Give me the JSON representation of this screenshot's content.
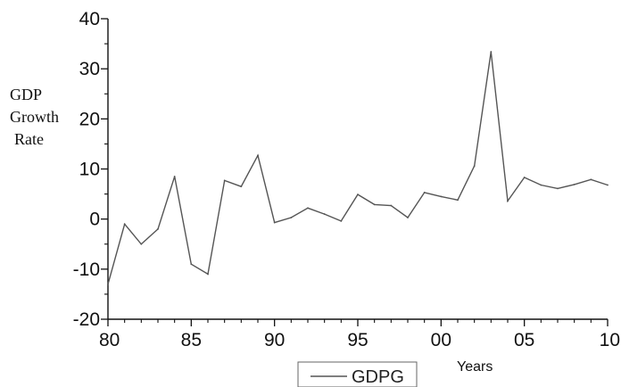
{
  "chart_data": {
    "type": "line",
    "title": "",
    "ylabel": [
      "GDP",
      "Growth",
      "Rate"
    ],
    "xlabel": "Years",
    "x_ticks": [
      "80",
      "85",
      "90",
      "95",
      "00",
      "05",
      "10"
    ],
    "y_ticks": [
      "40",
      "30",
      "20",
      "10",
      "0",
      "-10",
      "-20"
    ],
    "xlim": [
      1980,
      2010
    ],
    "ylim": [
      -20,
      40
    ],
    "grid": false,
    "legend_position": "bottom-center",
    "series": [
      {
        "name": "GDPG",
        "color": "#555555",
        "x": [
          1980,
          1981,
          1982,
          1983,
          1984,
          1985,
          1986,
          1987,
          1988,
          1989,
          1990,
          1991,
          1992,
          1993,
          1994,
          1995,
          1996,
          1997,
          1998,
          1999,
          2000,
          2001,
          2002,
          2003,
          2004,
          2005,
          2006,
          2007,
          2008,
          2009,
          2010
        ],
        "y": [
          -13,
          -1,
          -5,
          -2,
          8.5,
          -9,
          -11,
          7.7,
          6.5,
          12.7,
          -0.7,
          0.3,
          2.2,
          1,
          -0.4,
          4.9,
          2.9,
          2.7,
          0.3,
          5.3,
          4.5,
          3.8,
          10.6,
          33.4,
          3.6,
          8.3,
          6.8,
          6.1,
          6.9,
          7.9,
          6.8
        ]
      }
    ]
  }
}
